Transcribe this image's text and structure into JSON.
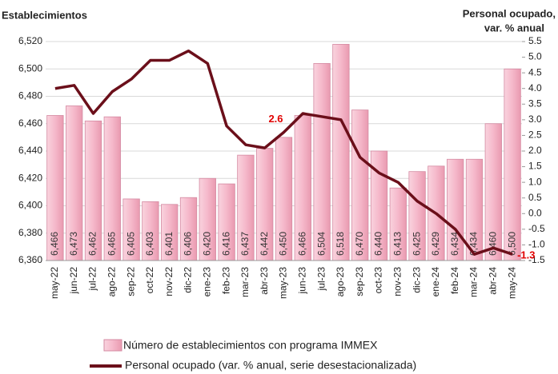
{
  "chart_data": {
    "type": "bar_line",
    "title": "Establecimientos",
    "y2_title": [
      "Personal ocupado,",
      "var. % anual"
    ],
    "categories": [
      "may-22",
      "jun-22",
      "jul-22",
      "ago-22",
      "sep-22",
      "oct-22",
      "nov-22",
      "dic-22",
      "ene-23",
      "feb-23",
      "mar-23",
      "abr-23",
      "may-23",
      "jun-23",
      "jul-23",
      "ago-23",
      "sep-23",
      "oct-23",
      "nov-23",
      "dic-23",
      "ene-24",
      "feb-24",
      "mar-24",
      "abr-24",
      "may-24"
    ],
    "series": [
      {
        "name": "Número de establecimientos con programa IMMEX",
        "type": "bar",
        "color": "#f5b8ca",
        "values": [
          6466,
          6473,
          6462,
          6465,
          6405,
          6403,
          6401,
          6406,
          6420,
          6416,
          6437,
          6442,
          6450,
          6466,
          6504,
          6518,
          6470,
          6440,
          6413,
          6425,
          6429,
          6434,
          6434,
          6460,
          6500
        ],
        "value_labels": [
          "6,466",
          "6,473",
          "6,462",
          "6,465",
          "6,405",
          "6,403",
          "6,401",
          "6,406",
          "6,420",
          "6,416",
          "6,437",
          "6,442",
          "6,450",
          "6,466",
          "6,504",
          "6,518",
          "6,470",
          "6,440",
          "6,413",
          "6,425",
          "6,429",
          "6,434",
          "6,434",
          "6,460",
          "6,500"
        ]
      },
      {
        "name": "Personal ocupado (var. % anual, serie desestacionalizada)",
        "type": "line",
        "axis": "y2",
        "color": "#6b0f1a",
        "values": [
          4.0,
          4.1,
          3.2,
          3.9,
          4.3,
          4.9,
          4.9,
          5.2,
          4.8,
          2.8,
          2.2,
          2.1,
          2.6,
          3.2,
          3.1,
          3.0,
          1.8,
          1.3,
          1.0,
          0.4,
          0.0,
          -0.5,
          -1.3,
          -1.1,
          -1.3
        ]
      }
    ],
    "annotations": [
      {
        "index": 12,
        "text": "2.6"
      },
      {
        "index": 24,
        "text": "-1.3"
      }
    ],
    "ylim": [
      6360,
      6520
    ],
    "yticks": [
      {
        "value": 6360,
        "label": "6,360"
      },
      {
        "value": 6380,
        "label": "6,380"
      },
      {
        "value": 6400,
        "label": "6,400"
      },
      {
        "value": 6420,
        "label": "6,420"
      },
      {
        "value": 6440,
        "label": "6,440"
      },
      {
        "value": 6460,
        "label": "6,460"
      },
      {
        "value": 6480,
        "label": "6,480"
      },
      {
        "value": 6500,
        "label": "6,500"
      },
      {
        "value": 6520,
        "label": "6,520"
      }
    ],
    "y2lim": [
      -1.5,
      5.5
    ],
    "y2ticks": [
      -1.5,
      {
        "value": -1,
        "label": "-1.0"
      },
      -0.5,
      {
        "value": 0,
        "label": "0.0"
      },
      0.5,
      {
        "value": 1,
        "label": "1.0"
      },
      1.5,
      {
        "value": 2,
        "label": "2.0"
      },
      2.5,
      {
        "value": 3,
        "label": "3.0"
      },
      3.5,
      {
        "value": 4,
        "label": "4.0"
      },
      4.5,
      {
        "value": 5,
        "label": "5.0"
      },
      5.5
    ],
    "grid": true
  }
}
